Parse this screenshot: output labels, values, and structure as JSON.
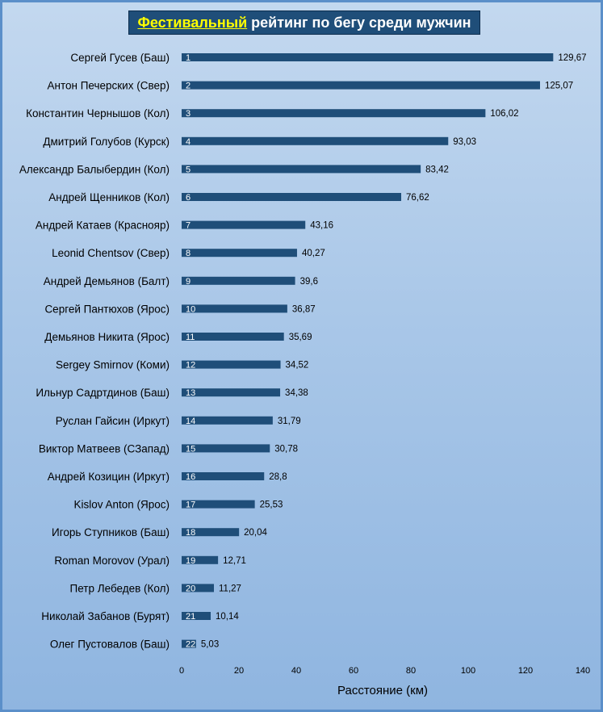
{
  "chart_data": {
    "type": "bar",
    "orientation": "horizontal",
    "title_accent": "Фестивальный",
    "title_rest": " рейтинг по бегу среди мужчин",
    "xlabel": "Расстояние (км)",
    "ylabel": "",
    "xlim": [
      0,
      140
    ],
    "x_ticks": [
      "0",
      "20",
      "40",
      "60",
      "80",
      "100",
      "120",
      "140"
    ],
    "grid": false,
    "bar_color": "#1f4e79",
    "categories": [
      "Сергей Гусев (Баш)",
      "Антон Печерских (Свер)",
      "Константин Чернышов (Кол)",
      "Дмитрий Голубов (Курск)",
      "Александр Балыбердин (Кол)",
      "Андрей Щенников (Кол)",
      "Андрей Катаев (Краснояр)",
      "Leonid Chentsov (Свер)",
      "Андрей Демьянов (Балт)",
      "Сергей Пантюхов (Ярос)",
      "Демьянов Никита (Ярос)",
      "Sergey Smirnov (Коми)",
      "Ильнур Садртдинов (Баш)",
      "Руслан Гайсин (Иркут)",
      "Виктор Матвеев (СЗапад)",
      "Андрей Козицин (Иркут)",
      "Kislov Anton (Ярос)",
      "Игорь Ступников (Баш)",
      "Roman Morovov (Урал)",
      "Петр Лебедев (Кол)",
      "Николай Забанов (Бурят)",
      "Олег Пустовалов (Баш)"
    ],
    "ranks": [
      "1",
      "2",
      "3",
      "4",
      "5",
      "6",
      "7",
      "8",
      "9",
      "10",
      "11",
      "12",
      "13",
      "14",
      "15",
      "16",
      "17",
      "18",
      "19",
      "20",
      "21",
      "22"
    ],
    "values": [
      129.67,
      125.07,
      106.02,
      93.03,
      83.42,
      76.62,
      43.16,
      40.27,
      39.6,
      36.87,
      35.69,
      34.52,
      34.38,
      31.79,
      30.78,
      28.8,
      25.53,
      20.04,
      12.71,
      11.27,
      10.14,
      5.03
    ],
    "value_labels": [
      "129,67",
      "125,07",
      "106,02",
      "93,03",
      "83,42",
      "76,62",
      "43,16",
      "40,27",
      "39,6",
      "36,87",
      "35,69",
      "34,52",
      "34,38",
      "31,79",
      "30,78",
      "28,8",
      "25,53",
      "20,04",
      "12,71",
      "11,27",
      "10,14",
      "5,03"
    ]
  }
}
